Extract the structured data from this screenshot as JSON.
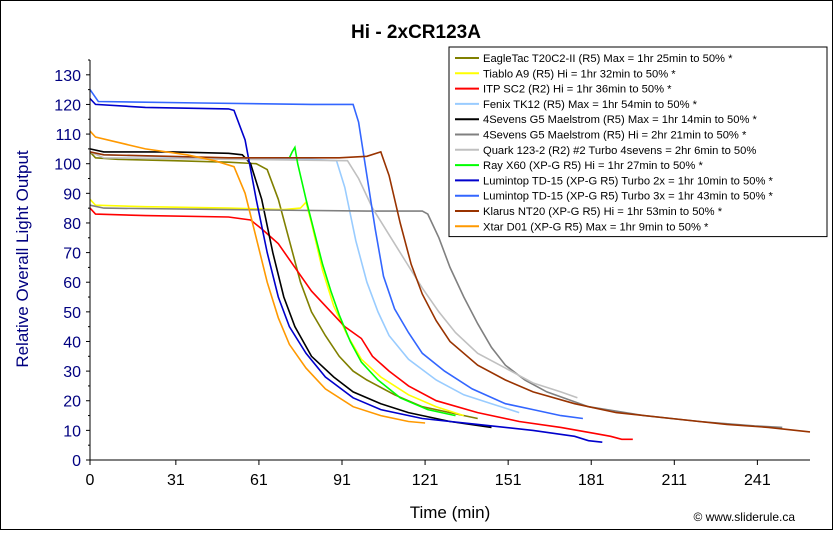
{
  "chart_data": {
    "type": "line",
    "title": "Hi - 2xCR123A",
    "xlabel": "Time (min)",
    "ylabel": "Relative Overall Light Output",
    "xlim": [
      0,
      260
    ],
    "ylim": [
      0,
      135
    ],
    "x_ticks": [
      0,
      31,
      61,
      91,
      121,
      151,
      181,
      211,
      241
    ],
    "y_ticks": [
      0,
      10,
      20,
      30,
      40,
      50,
      60,
      70,
      80,
      90,
      100,
      110,
      120,
      130
    ],
    "grid": false,
    "legend_position": "top-right",
    "credit": "© www.sliderule.ca",
    "series": [
      {
        "name": "EagleTac T20C2-II (R5) Max = 1hr 25min to 50% *",
        "color": "#808000",
        "points": [
          [
            0,
            104
          ],
          [
            2,
            102
          ],
          [
            10,
            101.5
          ],
          [
            30,
            101
          ],
          [
            50,
            100.5
          ],
          [
            60,
            100
          ],
          [
            64,
            98
          ],
          [
            68,
            88
          ],
          [
            72,
            74
          ],
          [
            76,
            60
          ],
          [
            80,
            50
          ],
          [
            85,
            42
          ],
          [
            90,
            35
          ],
          [
            95,
            30
          ],
          [
            100,
            27
          ],
          [
            110,
            22
          ],
          [
            120,
            18
          ],
          [
            130,
            16
          ],
          [
            140,
            14
          ]
        ]
      },
      {
        "name": "Tiablo A9 (R5) Hi = 1hr 32min to 50% *",
        "color": "#ffff00",
        "points": [
          [
            0,
            88
          ],
          [
            2,
            86
          ],
          [
            20,
            85.5
          ],
          [
            50,
            85
          ],
          [
            70,
            84.5
          ],
          [
            76,
            85
          ],
          [
            78,
            87
          ],
          [
            80,
            80
          ],
          [
            84,
            64
          ],
          [
            88,
            52
          ],
          [
            93,
            42
          ],
          [
            98,
            34
          ],
          [
            105,
            28
          ],
          [
            115,
            22
          ],
          [
            125,
            18
          ],
          [
            135,
            15
          ]
        ]
      },
      {
        "name": "ITP SC2 (R2) Hi = 1hr 36min to 50% *",
        "color": "#ff0000",
        "points": [
          [
            0,
            85
          ],
          [
            2,
            83
          ],
          [
            20,
            82.5
          ],
          [
            50,
            82
          ],
          [
            58,
            81
          ],
          [
            62,
            78
          ],
          [
            68,
            73
          ],
          [
            74,
            65
          ],
          [
            80,
            57
          ],
          [
            86,
            51
          ],
          [
            92,
            45
          ],
          [
            98,
            41
          ],
          [
            102,
            35
          ],
          [
            108,
            30
          ],
          [
            115,
            25
          ],
          [
            125,
            20
          ],
          [
            140,
            16
          ],
          [
            155,
            13
          ],
          [
            170,
            11
          ],
          [
            182,
            9
          ],
          [
            188,
            8
          ],
          [
            192,
            7
          ],
          [
            196,
            7
          ]
        ]
      },
      {
        "name": "Fenix TK12 (R5) Max = 1hr 54min to 50% *",
        "color": "#99ccff",
        "points": [
          [
            0,
            104
          ],
          [
            5,
            103
          ],
          [
            40,
            102
          ],
          [
            80,
            101.5
          ],
          [
            89,
            101
          ],
          [
            92,
            92
          ],
          [
            96,
            74
          ],
          [
            100,
            60
          ],
          [
            104,
            50
          ],
          [
            108,
            42
          ],
          [
            115,
            34
          ],
          [
            125,
            27
          ],
          [
            135,
            22
          ],
          [
            145,
            19
          ],
          [
            155,
            16
          ]
        ]
      },
      {
        "name": "4Sevens G5 Maelstrom (R5) Max = 1hr 14min to 50% *",
        "color": "#000000",
        "points": [
          [
            0,
            105
          ],
          [
            5,
            104
          ],
          [
            30,
            104
          ],
          [
            50,
            103.5
          ],
          [
            55,
            103
          ],
          [
            58,
            100
          ],
          [
            62,
            88
          ],
          [
            66,
            70
          ],
          [
            70,
            55
          ],
          [
            74,
            45
          ],
          [
            80,
            35
          ],
          [
            88,
            28
          ],
          [
            95,
            23
          ],
          [
            105,
            19
          ],
          [
            115,
            16
          ],
          [
            130,
            13
          ],
          [
            145,
            11
          ]
        ]
      },
      {
        "name": "4Sevens G5 Maelstrom (R5) Hi = 2hr 21min to 50% *",
        "color": "#808080",
        "points": [
          [
            0,
            86
          ],
          [
            5,
            85
          ],
          [
            50,
            84.5
          ],
          [
            100,
            84
          ],
          [
            120,
            84
          ],
          [
            122,
            83
          ],
          [
            126,
            75
          ],
          [
            130,
            65
          ],
          [
            135,
            55
          ],
          [
            140,
            46
          ],
          [
            145,
            38
          ],
          [
            150,
            32
          ],
          [
            157,
            27
          ],
          [
            165,
            23
          ],
          [
            180,
            18
          ],
          [
            200,
            15
          ],
          [
            220,
            13
          ],
          [
            240,
            11.5
          ],
          [
            250,
            11
          ]
        ]
      },
      {
        "name": "Quark 123-2 (R2) #2 Turbo 4sevens = 2hr 6min to 50%",
        "color": "#c0c0c0",
        "points": [
          [
            0,
            104
          ],
          [
            5,
            102
          ],
          [
            50,
            101.5
          ],
          [
            93,
            101
          ],
          [
            97,
            95
          ],
          [
            102,
            85
          ],
          [
            108,
            76
          ],
          [
            114,
            67
          ],
          [
            120,
            58
          ],
          [
            126,
            50
          ],
          [
            132,
            43
          ],
          [
            140,
            36
          ],
          [
            150,
            31
          ],
          [
            160,
            26
          ],
          [
            170,
            23
          ],
          [
            176,
            21
          ]
        ]
      },
      {
        "name": "Ray X60 (XP-G R5) Hi = 1hr 27min to 50% *",
        "color": "#00ff00",
        "points": [
          [
            72,
            102
          ],
          [
            73,
            104
          ],
          [
            74,
            105.5
          ],
          [
            75,
            100
          ],
          [
            78,
            88
          ],
          [
            81,
            77
          ],
          [
            84,
            66
          ],
          [
            87,
            57
          ],
          [
            90,
            49
          ],
          [
            94,
            40
          ],
          [
            98,
            33
          ],
          [
            104,
            27
          ],
          [
            112,
            21
          ],
          [
            122,
            17
          ],
          [
            132,
            15
          ]
        ]
      },
      {
        "name": "Lumintop TD-15 (XP-G R5) Turbo 2x = 1hr 10min to 50% *",
        "color": "#0000cc",
        "points": [
          [
            0,
            122
          ],
          [
            2,
            120
          ],
          [
            20,
            119
          ],
          [
            50,
            118.5
          ],
          [
            52,
            118
          ],
          [
            56,
            108
          ],
          [
            60,
            88
          ],
          [
            64,
            70
          ],
          [
            68,
            55
          ],
          [
            72,
            45
          ],
          [
            78,
            36
          ],
          [
            85,
            28
          ],
          [
            95,
            21
          ],
          [
            105,
            17
          ],
          [
            120,
            14
          ],
          [
            140,
            12
          ],
          [
            160,
            10
          ],
          [
            175,
            8
          ],
          [
            180,
            6.5
          ],
          [
            185,
            6
          ]
        ]
      },
      {
        "name": "Lumintop TD-15 (XP-G R5) Turbo 3x = 1hr 43min to 50% *",
        "color": "#3366ff",
        "points": [
          [
            0,
            125
          ],
          [
            3,
            121
          ],
          [
            40,
            120.5
          ],
          [
            80,
            120
          ],
          [
            95,
            120
          ],
          [
            97,
            114
          ],
          [
            100,
            96
          ],
          [
            103,
            78
          ],
          [
            106,
            62
          ],
          [
            110,
            51
          ],
          [
            115,
            43
          ],
          [
            120,
            36
          ],
          [
            128,
            30
          ],
          [
            138,
            24
          ],
          [
            150,
            19
          ],
          [
            160,
            17
          ],
          [
            170,
            15
          ],
          [
            178,
            14
          ]
        ]
      },
      {
        "name": "Klarus NT20 (XP-G R5) Hi = 1hr 53min to 50% *",
        "color": "#993300",
        "points": [
          [
            0,
            104
          ],
          [
            5,
            103
          ],
          [
            50,
            102
          ],
          [
            90,
            102
          ],
          [
            100,
            102.5
          ],
          [
            105,
            104
          ],
          [
            108,
            96
          ],
          [
            112,
            80
          ],
          [
            116,
            66
          ],
          [
            120,
            56
          ],
          [
            125,
            47
          ],
          [
            130,
            40
          ],
          [
            140,
            32
          ],
          [
            150,
            27
          ],
          [
            160,
            23
          ],
          [
            175,
            19
          ],
          [
            190,
            16
          ],
          [
            210,
            14
          ],
          [
            230,
            12
          ],
          [
            245,
            11
          ],
          [
            260,
            9.5
          ]
        ]
      },
      {
        "name": "Xtar D01 (XP-G R5) Max = 1hr 9min to 50% *",
        "color": "#ff9900",
        "points": [
          [
            0,
            111
          ],
          [
            2,
            109
          ],
          [
            20,
            105
          ],
          [
            35,
            103
          ],
          [
            45,
            101
          ],
          [
            52,
            99
          ],
          [
            56,
            90
          ],
          [
            60,
            75
          ],
          [
            64,
            60
          ],
          [
            68,
            48
          ],
          [
            72,
            39
          ],
          [
            78,
            31
          ],
          [
            85,
            24
          ],
          [
            95,
            18
          ],
          [
            105,
            15
          ],
          [
            115,
            13
          ],
          [
            121,
            12.5
          ]
        ]
      }
    ]
  }
}
